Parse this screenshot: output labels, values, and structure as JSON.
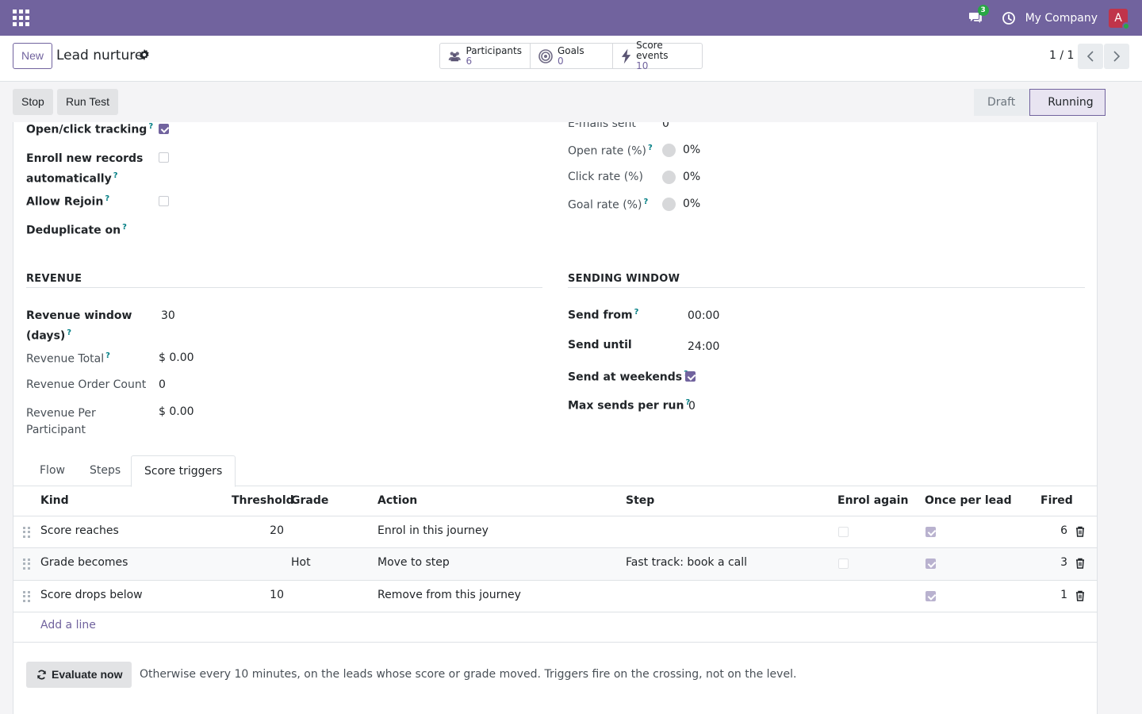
{
  "navbar": {
    "chat_count": "3",
    "company": "My Company",
    "avatar_letter": "A"
  },
  "control_panel": {
    "new_label": "New",
    "record_name": "Lead nurture",
    "stats": [
      {
        "label": "Participants",
        "value": "6"
      },
      {
        "label": "Goals",
        "value": "0"
      },
      {
        "label": "Score events",
        "value": "10"
      }
    ],
    "pager": "1 / 1"
  },
  "header_buttons": {
    "stop": "Stop",
    "run_test": "Run Test"
  },
  "statusbar": {
    "draft": "Draft",
    "running": "Running"
  },
  "settings": {
    "open_click_tracking": "Open/click tracking",
    "enroll_new_1": "Enroll new records",
    "enroll_new_2": "automatically",
    "allow_rejoin": "Allow Rejoin",
    "deduplicate_on": "Deduplicate on",
    "help": "?"
  },
  "stats_panel": {
    "emails_sent_label": "E-mails sent",
    "emails_sent_value": "0",
    "open_rate_label": "Open rate (%)",
    "open_rate_value": "0%",
    "click_rate_label": "Click rate (%)",
    "click_rate_value": "0%",
    "goal_rate_label": "Goal rate (%)",
    "goal_rate_value": "0%"
  },
  "revenue": {
    "title": "REVENUE",
    "window_label_1": "Revenue window",
    "window_label_2": "(days)",
    "window_value": "30",
    "total_label": "Revenue Total",
    "total_value": "$ 0.00",
    "order_count_label": "Revenue Order Count",
    "order_count_value": "0",
    "per_participant_label_1": "Revenue Per",
    "per_participant_label_2": "Participant",
    "per_participant_value": "$ 0.00"
  },
  "sending_window": {
    "title": "SENDING WINDOW",
    "send_from_label": "Send from",
    "send_from_value": "00:00",
    "send_until_label": "Send until",
    "send_until_value": "24:00",
    "weekends_label": "Send at weekends",
    "max_sends_label": "Max sends per run",
    "max_sends_value": "0"
  },
  "tabs": [
    "Flow",
    "Steps",
    "Score triggers"
  ],
  "table": {
    "headers": {
      "kind": "Kind",
      "threshold": "Threshold",
      "grade": "Grade",
      "action": "Action",
      "step": "Step",
      "enrol_again": "Enrol again",
      "once_per_lead": "Once per lead",
      "fired": "Fired"
    },
    "rows": [
      {
        "kind": "Score reaches",
        "threshold": "20",
        "grade": "",
        "action": "Enrol in this journey",
        "step": "",
        "fired": "6"
      },
      {
        "kind": "Grade becomes",
        "threshold": "",
        "grade": "Hot",
        "action": "Move to step",
        "step": "Fast track: book a call",
        "fired": "3"
      },
      {
        "kind": "Score drops below",
        "threshold": "10",
        "grade": "",
        "action": "Remove from this journey",
        "step": "",
        "fired": "1"
      }
    ],
    "add_line": "Add a line"
  },
  "evaluate": {
    "button": "Evaluate now",
    "note": "Otherwise every 10 minutes, on the leads whose score or grade moved. Triggers fire on the crossing, not on the level."
  },
  "colors": {
    "brand": "#71639e",
    "help": "#017e84"
  }
}
